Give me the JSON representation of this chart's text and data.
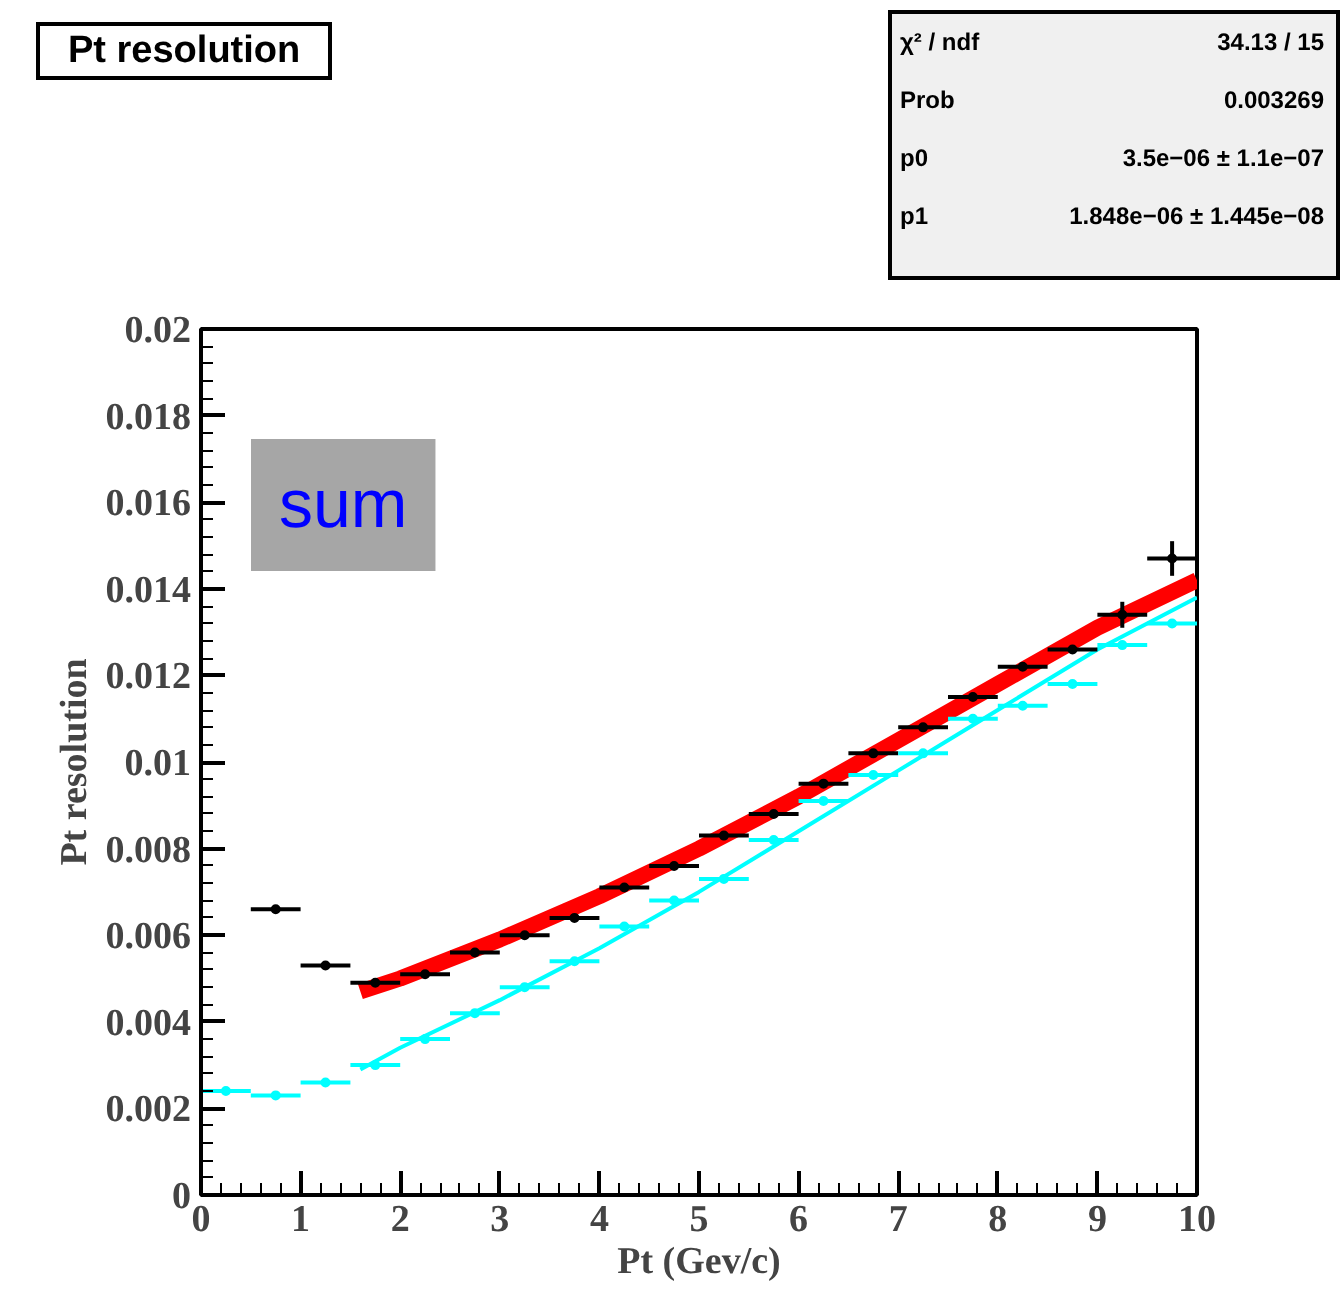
{
  "chart_data": {
    "type": "scatter",
    "title": "Pt resolution",
    "xlabel": "Pt (Gev/c)",
    "ylabel": "Pt resolution",
    "xlim": [
      0,
      10
    ],
    "ylim": [
      0,
      0.02
    ],
    "xticks": [
      0,
      1,
      2,
      3,
      4,
      5,
      6,
      7,
      8,
      9,
      10
    ],
    "yticks": [
      0,
      0.002,
      0.004,
      0.006,
      0.008,
      {
        "value": 0.01,
        "label": "0.01"
      },
      0.012,
      0.014,
      0.016,
      0.018,
      0.02
    ],
    "grid": false,
    "annotations": [
      "sum",
      "χ² / ndf",
      "34.13 / 15",
      "Prob",
      "0.003269",
      "p0",
      "3.5e−06 ± 1.1e−07",
      "p1",
      "1.848e−06 ± 1.445e−08"
    ],
    "series": [
      {
        "type": "line",
        "color": "#00ffff",
        "x": [
          1.6,
          2,
          3,
          4,
          5,
          6,
          7,
          8,
          9,
          10
        ],
        "values": [
          0.0029,
          0.0034,
          0.0045,
          0.0057,
          0.007,
          0.0084,
          0.0098,
          0.0112,
          0.0126,
          0.0138
        ]
      },
      {
        "type": "line",
        "color": "#ff0000",
        "x": [
          1.6,
          2,
          3,
          4,
          5,
          6,
          7,
          8,
          9,
          10
        ],
        "values": [
          0.0047,
          0.005,
          0.0059,
          0.0069,
          0.008,
          0.0092,
          0.0105,
          0.0118,
          0.0131,
          0.0142
        ]
      },
      {
        "color": "#000000",
        "marker": "circle",
        "x": [
          0.75,
          1.25,
          1.75,
          2.25,
          2.75,
          3.25,
          3.75,
          4.25,
          4.75,
          5.25,
          5.75,
          6.25,
          6.75,
          7.25,
          7.75,
          8.25,
          8.75,
          9.25,
          9.75
        ],
        "values": [
          0.0066,
          0.0053,
          0.0049,
          0.0051,
          0.0056,
          0.006,
          0.0064,
          0.0071,
          0.0076,
          0.0083,
          0.0088,
          0.0095,
          0.0102,
          0.0108,
          0.0115,
          0.0122,
          0.0126,
          0.0134,
          0.0147
        ],
        "xerrors": [
          0.25,
          0.25,
          0.25,
          0.25,
          0.25,
          0.25,
          0.25,
          0.25,
          0.25,
          0.25,
          0.25,
          0.25,
          0.25,
          0.25,
          0.25,
          0.25,
          0.25,
          0.25,
          0.25
        ],
        "errors": [
          null,
          null,
          null,
          null,
          null,
          null,
          null,
          null,
          null,
          null,
          null,
          null,
          null,
          null,
          null,
          null,
          null,
          0.0003,
          0.0004
        ]
      },
      {
        "color": "#00ffff",
        "marker": "circle",
        "x": [
          0.25,
          0.75,
          1.25,
          1.75,
          2.25,
          2.75,
          3.25,
          3.75,
          4.25,
          4.75,
          5.25,
          5.75,
          6.25,
          6.75,
          7.25,
          7.75,
          8.25,
          8.75,
          9.25,
          9.75
        ],
        "values": [
          0.0024,
          0.0023,
          0.0026,
          0.003,
          0.0036,
          0.0042,
          0.0048,
          0.0054,
          0.0062,
          0.0068,
          0.0073,
          0.0082,
          0.0091,
          0.0097,
          0.0102,
          0.011,
          0.0113,
          0.0118,
          0.0127,
          0.0132
        ],
        "xerrors": [
          0.25,
          0.25,
          0.25,
          0.25,
          0.25,
          0.25,
          0.25,
          0.25,
          0.25,
          0.25,
          0.25,
          0.25,
          0.25,
          0.25,
          0.25,
          0.25,
          0.25,
          0.25,
          0.25,
          0.25
        ]
      }
    ]
  }
}
